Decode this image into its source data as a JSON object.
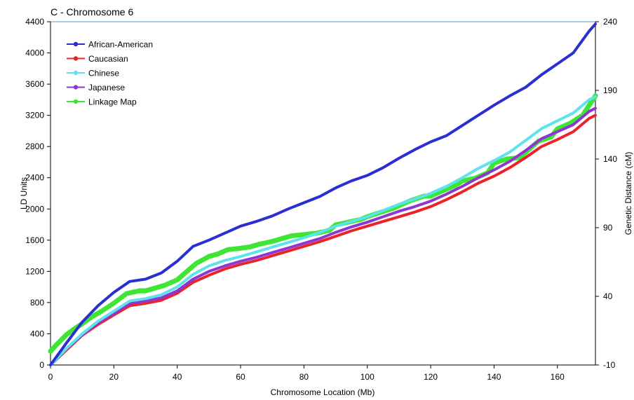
{
  "chart_data": {
    "type": "line",
    "title": "C - Chromosome 6",
    "xlabel": "Chromosome Location (Mb)",
    "ylabel": "LD Units",
    "y2label": "Genetic Distance (cM)",
    "xlim": [
      0,
      172
    ],
    "ylim": [
      0,
      4400
    ],
    "y2lim": [
      -10,
      240
    ],
    "xticks": [
      "0",
      "20",
      "40",
      "60",
      "80",
      "100",
      "120",
      "140",
      "160"
    ],
    "yticks": [
      "0",
      "400",
      "800",
      "1200",
      "1600",
      "2000",
      "2400",
      "2800",
      "3200",
      "3600",
      "4000",
      "4400"
    ],
    "y2ticks": [
      "-10",
      "40",
      "90",
      "140",
      "190",
      "240"
    ],
    "legend_position": "top-left",
    "grid": false,
    "series": [
      {
        "name": "African-American",
        "axis": "left",
        "color": "#2b2fd1",
        "style": "line",
        "x": [
          0,
          5,
          10,
          15,
          20,
          25,
          30,
          35,
          40,
          45,
          50,
          55,
          60,
          65,
          70,
          75,
          80,
          85,
          90,
          95,
          100,
          105,
          110,
          115,
          120,
          125,
          130,
          135,
          140,
          145,
          150,
          155,
          160,
          165,
          170,
          172
        ],
        "y": [
          0,
          280,
          550,
          760,
          930,
          1070,
          1100,
          1180,
          1330,
          1520,
          1600,
          1690,
          1780,
          1840,
          1910,
          2000,
          2080,
          2160,
          2270,
          2360,
          2430,
          2530,
          2650,
          2760,
          2860,
          2940,
          3070,
          3200,
          3330,
          3450,
          3560,
          3720,
          3860,
          4000,
          4280,
          4370
        ]
      },
      {
        "name": "Caucasian",
        "axis": "left",
        "color": "#e8242a",
        "style": "line",
        "x": [
          0,
          5,
          10,
          15,
          20,
          25,
          30,
          35,
          40,
          45,
          50,
          55,
          60,
          65,
          70,
          75,
          80,
          85,
          90,
          95,
          100,
          105,
          110,
          115,
          120,
          125,
          130,
          135,
          140,
          145,
          150,
          155,
          160,
          165,
          170,
          172
        ],
        "y": [
          0,
          190,
          380,
          520,
          640,
          760,
          790,
          830,
          920,
          1060,
          1150,
          1230,
          1290,
          1340,
          1400,
          1460,
          1520,
          1580,
          1650,
          1720,
          1780,
          1840,
          1900,
          1960,
          2030,
          2120,
          2220,
          2330,
          2420,
          2530,
          2660,
          2800,
          2890,
          2990,
          3160,
          3200
        ]
      },
      {
        "name": "Chinese",
        "axis": "left",
        "color": "#5ee3ec",
        "style": "line",
        "x": [
          0,
          5,
          10,
          15,
          20,
          25,
          30,
          35,
          40,
          45,
          50,
          55,
          60,
          65,
          70,
          75,
          80,
          85,
          90,
          95,
          100,
          105,
          110,
          115,
          120,
          125,
          130,
          135,
          140,
          145,
          150,
          155,
          160,
          165,
          170,
          172
        ],
        "y": [
          0,
          210,
          400,
          560,
          690,
          820,
          850,
          900,
          1000,
          1160,
          1270,
          1340,
          1390,
          1450,
          1510,
          1570,
          1630,
          1700,
          1780,
          1840,
          1900,
          1980,
          2060,
          2130,
          2200,
          2290,
          2400,
          2520,
          2620,
          2730,
          2880,
          3030,
          3130,
          3230,
          3400,
          3440
        ]
      },
      {
        "name": "Japanese",
        "axis": "left",
        "color": "#8e35d6",
        "style": "line",
        "x": [
          0,
          5,
          10,
          15,
          20,
          25,
          30,
          35,
          40,
          45,
          50,
          55,
          60,
          65,
          70,
          75,
          80,
          85,
          90,
          95,
          100,
          105,
          110,
          115,
          120,
          125,
          130,
          135,
          140,
          145,
          150,
          155,
          160,
          165,
          170,
          172
        ],
        "y": [
          0,
          200,
          390,
          540,
          660,
          790,
          820,
          860,
          950,
          1100,
          1200,
          1270,
          1330,
          1380,
          1440,
          1500,
          1560,
          1620,
          1700,
          1770,
          1830,
          1900,
          1970,
          2030,
          2100,
          2190,
          2290,
          2400,
          2500,
          2610,
          2750,
          2900,
          2990,
          3080,
          3250,
          3290
        ]
      },
      {
        "name": "Linkage Map",
        "axis": "right",
        "color": "#3ee534",
        "style": "dots",
        "x": [
          0,
          2,
          5,
          8,
          10,
          13,
          16,
          20,
          24,
          28,
          30,
          33,
          36,
          40,
          43,
          46,
          50,
          53,
          56,
          60,
          63,
          66,
          70,
          73,
          76,
          80,
          84,
          88,
          90,
          94,
          98,
          100,
          104,
          108,
          110,
          114,
          118,
          120,
          124,
          128,
          130,
          134,
          138,
          140,
          144,
          148,
          150,
          154,
          158,
          160,
          164,
          168,
          170,
          172
        ],
        "y": [
          0,
          5,
          12,
          17,
          20,
          25,
          29,
          35,
          42,
          44,
          44,
          46,
          48,
          52,
          58,
          64,
          69,
          71,
          74,
          75,
          76,
          78,
          80,
          82,
          84,
          85,
          86,
          88,
          92,
          94,
          96,
          98,
          101,
          104,
          106,
          110,
          113,
          113,
          117,
          121,
          124,
          126,
          130,
          137,
          140,
          141,
          145,
          153,
          156,
          162,
          166,
          172,
          179,
          186
        ]
      }
    ]
  }
}
